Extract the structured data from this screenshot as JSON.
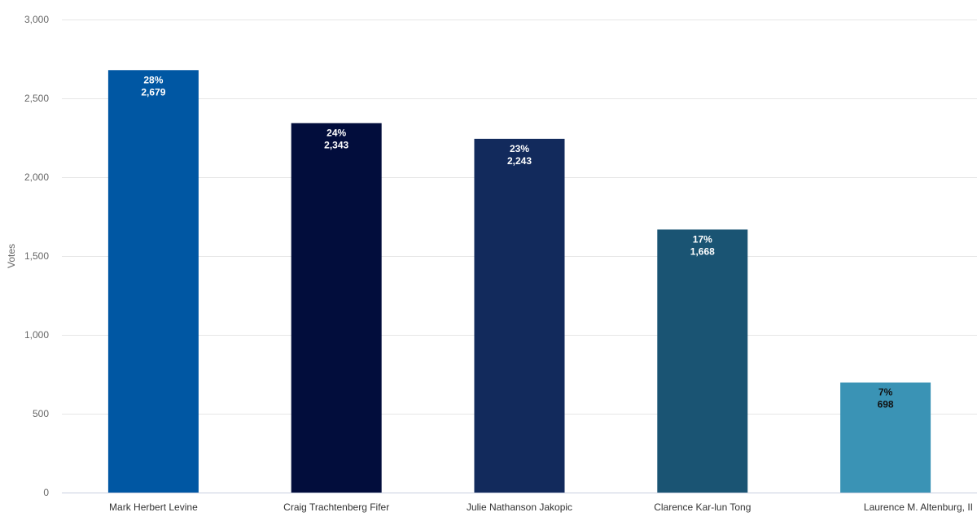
{
  "chart_data": {
    "type": "bar",
    "title": "",
    "xlabel": "",
    "ylabel": "Votes",
    "ylim": [
      0,
      3000
    ],
    "yticks": [
      0,
      500,
      1000,
      1500,
      2000,
      2500,
      3000
    ],
    "ytick_labels": [
      "0",
      "500",
      "1,000",
      "1,500",
      "2,000",
      "2,500",
      "3,000"
    ],
    "grid": true,
    "categories": [
      "Mark Herbert Levine",
      "Craig Trachtenberg Fifer",
      "Julie Nathanson Jakopic",
      "Clarence Kar-lun Tong",
      "Laurence M. Altenburg, II"
    ],
    "values": [
      2679,
      2343,
      2243,
      1668,
      698
    ],
    "percent_labels": [
      "28%",
      "24%",
      "23%",
      "17%",
      "7%"
    ],
    "value_labels": [
      "2,679",
      "2,343",
      "2,243",
      "1,668",
      "698"
    ],
    "colors": [
      "#0057a3",
      "#020d3c",
      "#122a5c",
      "#1a5473",
      "#3a93b5"
    ],
    "label_colors": [
      "#ffffff",
      "#ffffff",
      "#ffffff",
      "#ffffff",
      "#111111"
    ]
  }
}
